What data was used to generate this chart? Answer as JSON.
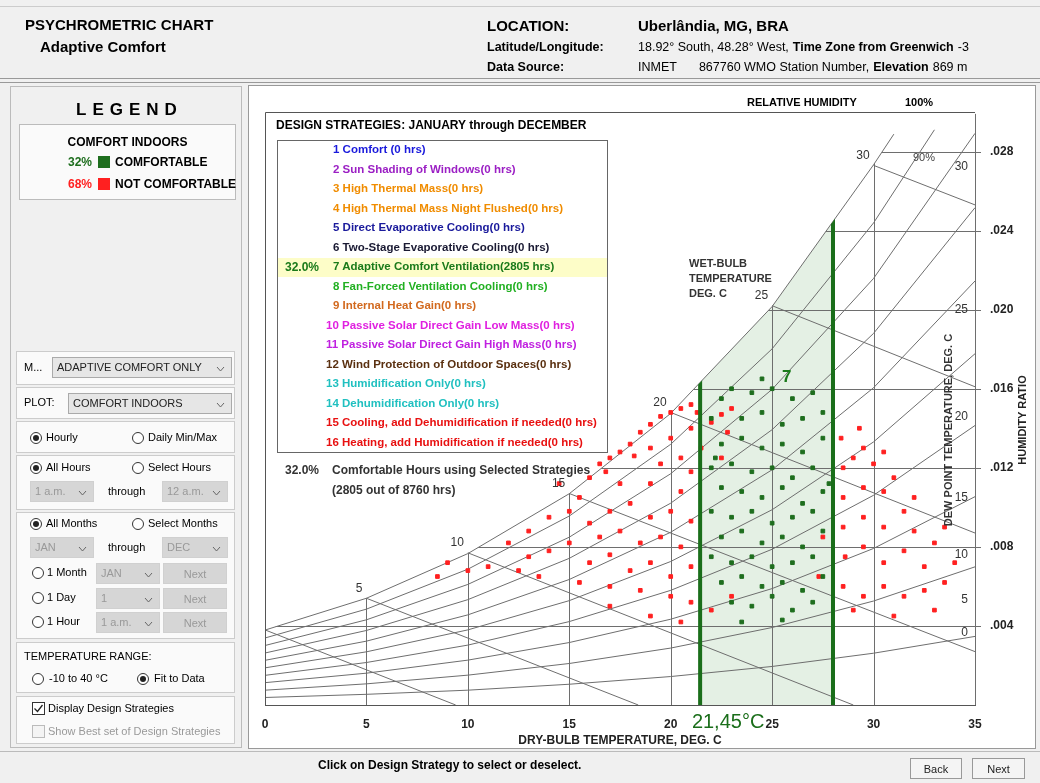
{
  "chart_data": {
    "type": "scatter",
    "title": "PSYCHROMETRIC CHART",
    "subtitle": "Adaptive Comfort",
    "xlabel": "DRY-BULB TEMPERATURE, DEG. C",
    "ylabel": "HUMIDITY RATIO",
    "y2label": "DEW POINT TEMPERATURE, DEG. C",
    "legend_title": "COMFORT INDOORS",
    "legend": "left",
    "grid": true,
    "xlim": [
      0,
      35
    ],
    "xticks": [
      0,
      5,
      10,
      15,
      20,
      25,
      30,
      35
    ],
    "ylim": [
      0,
      0.03
    ],
    "yticks": [
      {
        "value": 0.004,
        "label": ".004"
      },
      {
        "value": 0.008,
        "label": ".008"
      },
      {
        "value": 0.012,
        "label": ".012"
      },
      {
        "value": 0.016,
        "label": ".016"
      },
      {
        "value": 0.02,
        "label": ".020"
      },
      {
        "value": 0.024,
        "label": ".024"
      },
      {
        "value": 0.028,
        "label": ".028"
      }
    ],
    "bands": [
      {
        "axis": "x",
        "from": 21.45,
        "to": 28.0,
        "color": "#e4f0e4"
      }
    ],
    "ref_lines": [
      {
        "axis": "x",
        "value": 21.45,
        "label": "21,45°C",
        "color": "#1a6e1a"
      },
      {
        "axis": "x",
        "value": 28.0,
        "color": "#1a6e1a"
      }
    ],
    "annotations": [
      "LOCATION:",
      "Uberlândia, MG, BRA",
      "Latitude/Longitude:",
      "18.92° South, 48.28° West,",
      "Time Zone from Greenwich",
      "-3",
      "Data Source:",
      "INMET",
      "867760 WMO Station Number,",
      "Elevation",
      "869 m",
      "LEGEND",
      "32%",
      "68%",
      "M...",
      "ADAPTIVE COMFORT ONLY",
      "PLOT:",
      "COMFORT INDOORS",
      "Hourly",
      "Daily Min/Max",
      "All Hours",
      "Select Hours",
      "1 a.m.",
      "through",
      "12 a.m.",
      "All Months",
      "Select Months",
      "JAN",
      "through",
      "DEC",
      "1 Month",
      "JAN",
      "Next",
      "1 Day",
      "1",
      "Next",
      "1 Hour",
      "1 a.m.",
      "Next",
      "TEMPERATURE RANGE:",
      "-10 to 40 °C",
      "Fit to Data",
      "Display Design Strategies",
      "Show Best set of Design Strategies",
      "Click on Design Strategy to select or deselect.",
      "Back",
      "Next",
      "DESIGN STRATEGIES:  JANUARY through DECEMBER",
      "1 Comfort (0 hrs)",
      "2 Sun Shading of Windows(0 hrs)",
      "3 High Thermal Mass(0 hrs)",
      "4 High Thermal Mass Night Flushed(0 hrs)",
      "5 Direct Evaporative Cooling(0 hrs)",
      "6 Two-Stage Evaporative Cooling(0 hrs)",
      "7 Adaptive Comfort Ventilation(2805 hrs)",
      "8 Fan-Forced Ventilation Cooling(0 hrs)",
      "9 Internal Heat Gain(0 hrs)",
      "10 Passive Solar Direct Gain Low Mass(0 hrs)",
      "11 Passive Solar Direct Gain High Mass(0 hrs)",
      "12 Wind Protection of Outdoor Spaces(0 hrs)",
      "13 Humidification Only(0 hrs)",
      "14 Dehumidification Only(0 hrs)",
      "15 Cooling, add Dehumidification if needed(0 hrs)",
      "16 Heating, add Humidification if needed(0 hrs)",
      "32.0%",
      "32.0%",
      "Comfortable Hours using Selected Strategies",
      "(2805 out of 8760 hrs)",
      "RELATIVE HUMIDITY",
      "100%",
      "90%",
      "WET-BULB TEMPERATURE DEG. C",
      {
        "text": "5",
        "x": 5,
        "y": 0.0054
      },
      {
        "text": "10",
        "x": 10,
        "y": 0.0077
      },
      {
        "text": "15",
        "x": 15,
        "y": 0.0107
      },
      {
        "text": "20",
        "x": 20,
        "y": 0.0148
      },
      {
        "text": "25",
        "x": 25,
        "y": 0.0202
      },
      {
        "text": "30",
        "x": 30,
        "y": 0.0273
      },
      "7",
      "0",
      "5",
      "10",
      "15",
      "20",
      "25",
      "30"
    ],
    "series": [
      {
        "name": "COMFORTABLE",
        "color": "#1e6e1e",
        "x": [
          22,
          22.5,
          23,
          24,
          25,
          26,
          27,
          23.5,
          24.5,
          25.5,
          26.5,
          27.5,
          22.5,
          23.5,
          24.5,
          25.5,
          26.5,
          27.5,
          22,
          23,
          24,
          25,
          26,
          27,
          22.5,
          23.5,
          24.5,
          25.5,
          26.5,
          27.5,
          22,
          23,
          24,
          25,
          26,
          27,
          22.5,
          23.5,
          24.5,
          25.5,
          26.5,
          27.5,
          22,
          23,
          24,
          25,
          26,
          27,
          22.5,
          23.5,
          24.5,
          25.5,
          26.5,
          27.5,
          23,
          24,
          25,
          26,
          27,
          23.5,
          25.5,
          24.5,
          22.2,
          27.8
        ],
        "values": [
          0.0145,
          0.0155,
          0.016,
          0.0158,
          0.016,
          0.0155,
          0.0158,
          0.0145,
          0.0148,
          0.0142,
          0.0145,
          0.0148,
          0.0132,
          0.0135,
          0.013,
          0.0132,
          0.0128,
          0.0135,
          0.012,
          0.0122,
          0.0118,
          0.012,
          0.0115,
          0.012,
          0.011,
          0.0108,
          0.0105,
          0.011,
          0.0102,
          0.0108,
          0.0098,
          0.0095,
          0.0098,
          0.0092,
          0.0095,
          0.0098,
          0.0085,
          0.0088,
          0.0082,
          0.0085,
          0.008,
          0.0088,
          0.0075,
          0.0072,
          0.0075,
          0.007,
          0.0072,
          0.0075,
          0.0062,
          0.0065,
          0.006,
          0.0062,
          0.0058,
          0.0065,
          0.0052,
          0.005,
          0.0055,
          0.0048,
          0.0052,
          0.0042,
          0.0043,
          0.0165,
          0.0125,
          0.0112
        ]
      },
      {
        "name": "NOT COMFORTABLE",
        "color": "#ff2020",
        "x": [
          17.5,
          18,
          18.5,
          19,
          19.5,
          20,
          20.5,
          21,
          21.3,
          17,
          18.2,
          19,
          20,
          21,
          22,
          22.5,
          23,
          20.5,
          21.5,
          22.8,
          16.5,
          19.5,
          21,
          22.5,
          14,
          15,
          15.5,
          16,
          17,
          18,
          19,
          20,
          21,
          16.5,
          17.5,
          18.5,
          19.5,
          20.5,
          15,
          14,
          13,
          12.5,
          16,
          17,
          18,
          19,
          20,
          21,
          15.5,
          17,
          18.5,
          20,
          21,
          13.5,
          11,
          10,
          9,
          8.5,
          12,
          14.5,
          16,
          17.5,
          19,
          20.5,
          13,
          16.8,
          19,
          20.5,
          17,
          22,
          23,
          28.5,
          29,
          29.5,
          30,
          28.5,
          29.5,
          30.5,
          31,
          28.5,
          29.5,
          30.5,
          31.5,
          32,
          28.6,
          29.5,
          30.5,
          31.5,
          32.5,
          33,
          28.5,
          29.5,
          30.5,
          31.5,
          32.5,
          33.5,
          34,
          29,
          31,
          33,
          29.3,
          28.4,
          30.5,
          32,
          33.5,
          27.5,
          27.3
        ],
        "values": [
          0.0128,
          0.0132,
          0.0138,
          0.0142,
          0.0146,
          0.0148,
          0.015,
          0.0152,
          0.0148,
          0.0125,
          0.0126,
          0.013,
          0.0135,
          0.014,
          0.0143,
          0.0147,
          0.015,
          0.0125,
          0.013,
          0.0138,
          0.0122,
          0.0122,
          0.0118,
          0.0125,
          0.0095,
          0.0098,
          0.0105,
          0.0092,
          0.0098,
          0.0102,
          0.0095,
          0.0098,
          0.0093,
          0.0085,
          0.0088,
          0.0082,
          0.0085,
          0.008,
          0.0082,
          0.0078,
          0.0075,
          0.0068,
          0.0072,
          0.0076,
          0.0068,
          0.0072,
          0.0065,
          0.007,
          0.0062,
          0.006,
          0.0058,
          0.0055,
          0.0052,
          0.0065,
          0.007,
          0.0068,
          0.0072,
          0.0065,
          0.0082,
          0.0112,
          0.0115,
          0.0112,
          0.0112,
          0.0108,
          0.0088,
          0.0118,
          0.0045,
          0.0042,
          0.005,
          0.0048,
          0.0055,
          0.012,
          0.0125,
          0.013,
          0.0122,
          0.0105,
          0.011,
          0.0108,
          0.0115,
          0.009,
          0.0095,
          0.009,
          0.0098,
          0.0088,
          0.0075,
          0.008,
          0.0072,
          0.0078,
          0.007,
          0.0082,
          0.006,
          0.0055,
          0.006,
          0.0055,
          0.0058,
          0.0062,
          0.0072,
          0.0048,
          0.0045,
          0.0048,
          0.014,
          0.0135,
          0.0128,
          0.0105,
          0.009,
          0.0085,
          0.0065
        ]
      },
      {
        "type": "line",
        "color": "#6e6e6e",
        "x": [
          0,
          5,
          10,
          15,
          20,
          25,
          30,
          31
        ],
        "values": [
          0.00379,
          0.0054,
          0.00766,
          0.01069,
          0.01475,
          0.02016,
          0.02733,
          0.02888
        ]
      },
      {
        "type": "line",
        "color": "#6e6e6e",
        "x": [
          0,
          5,
          10,
          15,
          20,
          25,
          30,
          33
        ],
        "values": [
          0.00339,
          0.00485,
          0.00687,
          0.00956,
          0.01319,
          0.01802,
          0.02439,
          0.0291
        ]
      },
      {
        "type": "line",
        "color": "#6e6e6e",
        "x": [
          0,
          5,
          10,
          15,
          20,
          25,
          30,
          35
        ],
        "values": [
          0.00301,
          0.00431,
          0.0061,
          0.00849,
          0.0117,
          0.01597,
          0.02158,
          0.02892
        ]
      },
      {
        "type": "line",
        "color": "#6e6e6e",
        "x": [
          0,
          5,
          10,
          15,
          20,
          25,
          30,
          35
        ],
        "values": [
          0.00263,
          0.00377,
          0.00533,
          0.00742,
          0.01021,
          0.01393,
          0.0188,
          0.02516
        ]
      },
      {
        "type": "line",
        "color": "#6e6e6e",
        "x": [
          0,
          5,
          10,
          15,
          20,
          25,
          30,
          35
        ],
        "values": [
          0.00226,
          0.00323,
          0.00456,
          0.00635,
          0.00874,
          0.0119,
          0.01605,
          0.02145
        ]
      },
      {
        "type": "line",
        "color": "#6e6e6e",
        "x": [
          0,
          5,
          10,
          15,
          20,
          25,
          30,
          35
        ],
        "values": [
          0.00188,
          0.00269,
          0.0038,
          0.00528,
          0.00726,
          0.00988,
          0.01331,
          0.01777
        ]
      },
      {
        "type": "line",
        "color": "#6e6e6e",
        "x": [
          0,
          5,
          10,
          15,
          20,
          25,
          30,
          35
        ],
        "values": [
          0.0015,
          0.00215,
          0.00303,
          0.00422,
          0.0058,
          0.00788,
          0.01061,
          0.01414
        ]
      },
      {
        "type": "line",
        "color": "#6e6e6e",
        "x": [
          0,
          5,
          10,
          15,
          20,
          25,
          30,
          35
        ],
        "values": [
          0.00113,
          0.00161,
          0.00227,
          0.00316,
          0.00434,
          0.00589,
          0.00792,
          0.01054
        ]
      },
      {
        "type": "line",
        "color": "#6e6e6e",
        "x": [
          0,
          5,
          10,
          15,
          20,
          25,
          30,
          35
        ],
        "values": [
          0.00075,
          0.00107,
          0.00151,
          0.0021,
          0.00288,
          0.00392,
          0.00526,
          0.00699
        ]
      },
      {
        "type": "line",
        "color": "#6e6e6e",
        "x": [
          0,
          5,
          10,
          15,
          20,
          25,
          30,
          35
        ],
        "values": [
          0.00038,
          0.00054,
          0.00075,
          0.00105,
          0.00144,
          0.00195,
          0.00262,
          0.00347
        ]
      },
      {
        "type": "line",
        "color": "#6e6e6e",
        "x": [
          0,
          9.4
        ],
        "values": [
          0.0038,
          0
        ]
      },
      {
        "type": "line",
        "color": "#6e6e6e",
        "x": [
          5,
          18.4
        ],
        "values": [
          0.0054,
          0
        ]
      },
      {
        "type": "line",
        "color": "#6e6e6e",
        "x": [
          10,
          29
        ],
        "values": [
          0.0077,
          0
        ]
      },
      {
        "type": "line",
        "color": "#6e6e6e",
        "x": [
          15,
          35
        ],
        "values": [
          0.0107,
          0.0027
        ]
      },
      {
        "type": "line",
        "color": "#6e6e6e",
        "x": [
          20,
          35
        ],
        "values": [
          0.0148,
          0.0087
        ]
      },
      {
        "type": "line",
        "color": "#6e6e6e",
        "x": [
          25,
          35
        ],
        "values": [
          0.0202,
          0.0161
        ]
      },
      {
        "type": "line",
        "color": "#6e6e6e",
        "x": [
          30,
          35
        ],
        "values": [
          0.0273,
          0.0253
        ]
      }
    ]
  }
}
